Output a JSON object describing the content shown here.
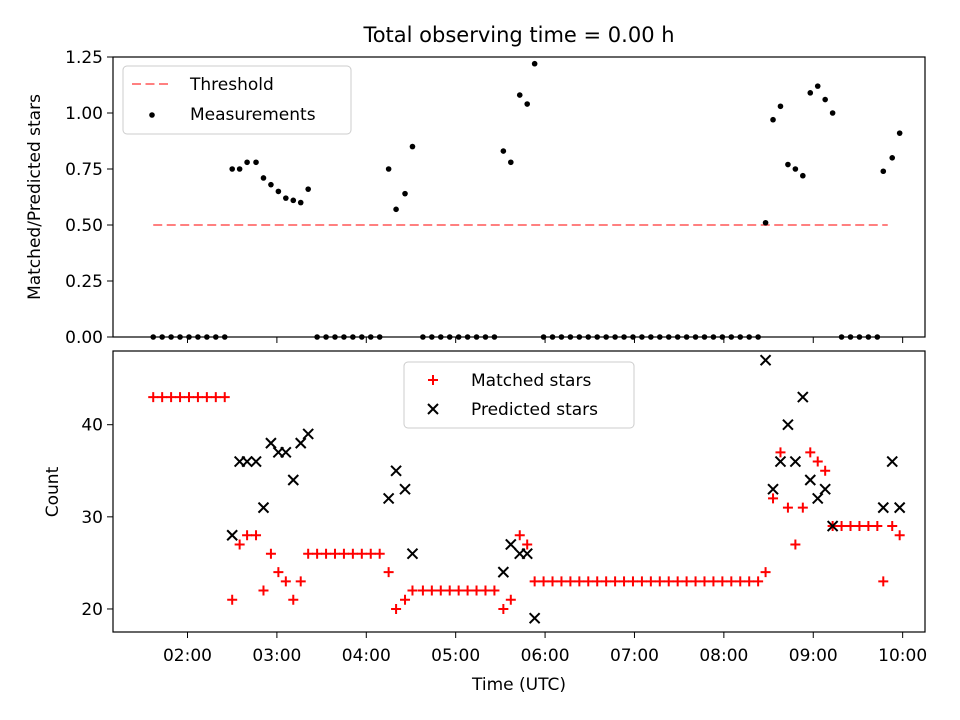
{
  "chart_data": [
    {
      "type": "scatter",
      "title": "Total observing time = 0.00 h",
      "xlabel": "",
      "ylabel": "Matched/Predicted stars",
      "xlim": [
        "01:10",
        "10:15"
      ],
      "ylim": [
        0,
        1.25
      ],
      "yticks": [
        "0.00",
        "0.25",
        "0.50",
        "0.75",
        "1.00",
        "1.25"
      ],
      "xticks_labels_shown": false,
      "legend": {
        "position": "top-left",
        "entries": [
          "Threshold",
          "Measurements"
        ]
      },
      "threshold": {
        "name": "Threshold",
        "value": 0.5,
        "x": [
          "01:37",
          "09:50"
        ],
        "color": "#ff8080",
        "style": "dashed"
      },
      "series": [
        {
          "name": "Measurements",
          "color": "#000000",
          "marker": "dot",
          "points": [
            [
              "01:37",
              0
            ],
            [
              "01:43",
              0
            ],
            [
              "01:49",
              0
            ],
            [
              "01:55",
              0
            ],
            [
              "02:01",
              0
            ],
            [
              "02:07",
              0
            ],
            [
              "02:13",
              0
            ],
            [
              "02:19",
              0
            ],
            [
              "02:25",
              0
            ],
            [
              "02:30",
              0.75
            ],
            [
              "02:35",
              0.75
            ],
            [
              "02:40",
              0.78
            ],
            [
              "02:46",
              0.78
            ],
            [
              "02:51",
              0.71
            ],
            [
              "02:56",
              0.68
            ],
            [
              "03:01",
              0.65
            ],
            [
              "03:06",
              0.62
            ],
            [
              "03:11",
              0.61
            ],
            [
              "03:16",
              0.6
            ],
            [
              "03:21",
              0.66
            ],
            [
              "03:27",
              0
            ],
            [
              "03:33",
              0
            ],
            [
              "03:39",
              0
            ],
            [
              "03:45",
              0
            ],
            [
              "03:51",
              0
            ],
            [
              "03:57",
              0
            ],
            [
              "04:03",
              0
            ],
            [
              "04:09",
              0
            ],
            [
              "04:15",
              0.75
            ],
            [
              "04:20",
              0.57
            ],
            [
              "04:26",
              0.64
            ],
            [
              "04:31",
              0.85
            ],
            [
              "04:38",
              0
            ],
            [
              "04:44",
              0
            ],
            [
              "04:50",
              0
            ],
            [
              "04:56",
              0
            ],
            [
              "05:02",
              0
            ],
            [
              "05:08",
              0
            ],
            [
              "05:14",
              0
            ],
            [
              "05:20",
              0
            ],
            [
              "05:26",
              0
            ],
            [
              "05:32",
              0.83
            ],
            [
              "05:37",
              0.78
            ],
            [
              "05:43",
              1.08
            ],
            [
              "05:48",
              1.04
            ],
            [
              "05:53",
              1.22
            ],
            [
              "05:59",
              0
            ],
            [
              "06:05",
              0
            ],
            [
              "06:11",
              0
            ],
            [
              "06:17",
              0
            ],
            [
              "06:23",
              0
            ],
            [
              "06:29",
              0
            ],
            [
              "06:35",
              0
            ],
            [
              "06:41",
              0
            ],
            [
              "06:47",
              0
            ],
            [
              "06:53",
              0
            ],
            [
              "06:59",
              0
            ],
            [
              "07:05",
              0
            ],
            [
              "07:11",
              0
            ],
            [
              "07:17",
              0
            ],
            [
              "07:23",
              0
            ],
            [
              "07:29",
              0
            ],
            [
              "07:35",
              0
            ],
            [
              "07:41",
              0
            ],
            [
              "07:47",
              0
            ],
            [
              "07:53",
              0
            ],
            [
              "07:59",
              0
            ],
            [
              "08:05",
              0
            ],
            [
              "08:11",
              0
            ],
            [
              "08:17",
              0
            ],
            [
              "08:23",
              0
            ],
            [
              "08:28",
              0.51
            ],
            [
              "08:33",
              0.97
            ],
            [
              "08:38",
              1.03
            ],
            [
              "08:43",
              0.77
            ],
            [
              "08:48",
              0.75
            ],
            [
              "08:53",
              0.72
            ],
            [
              "08:58",
              1.09
            ],
            [
              "09:03",
              1.12
            ],
            [
              "09:08",
              1.06
            ],
            [
              "09:13",
              1.0
            ],
            [
              "09:19",
              0
            ],
            [
              "09:25",
              0
            ],
            [
              "09:31",
              0
            ],
            [
              "09:37",
              0
            ],
            [
              "09:43",
              0
            ],
            [
              "09:47",
              0.74
            ],
            [
              "09:53",
              0.8
            ],
            [
              "09:58",
              0.91
            ]
          ]
        }
      ]
    },
    {
      "type": "scatter",
      "title": "",
      "xlabel": "Time (UTC)",
      "ylabel": "Count",
      "xlim": [
        "01:10",
        "10:15"
      ],
      "ylim": [
        17.5,
        48
      ],
      "xticks": [
        "02:00",
        "03:00",
        "04:00",
        "05:00",
        "06:00",
        "07:00",
        "08:00",
        "09:00",
        "10:00"
      ],
      "yticks": [
        "20",
        "30",
        "40"
      ],
      "legend": {
        "position": "top-center",
        "entries": [
          "Matched stars",
          "Predicted stars"
        ]
      },
      "series": [
        {
          "name": "Matched stars",
          "color": "#ff0000",
          "marker": "plus",
          "points": [
            [
              "01:37",
              43
            ],
            [
              "01:43",
              43
            ],
            [
              "01:49",
              43
            ],
            [
              "01:55",
              43
            ],
            [
              "02:01",
              43
            ],
            [
              "02:07",
              43
            ],
            [
              "02:13",
              43
            ],
            [
              "02:19",
              43
            ],
            [
              "02:25",
              43
            ],
            [
              "02:30",
              21
            ],
            [
              "02:35",
              27
            ],
            [
              "02:40",
              28
            ],
            [
              "02:46",
              28
            ],
            [
              "02:51",
              22
            ],
            [
              "02:56",
              26
            ],
            [
              "03:01",
              24
            ],
            [
              "03:06",
              23
            ],
            [
              "03:11",
              21
            ],
            [
              "03:16",
              23
            ],
            [
              "03:21",
              26
            ],
            [
              "03:27",
              26
            ],
            [
              "03:33",
              26
            ],
            [
              "03:39",
              26
            ],
            [
              "03:45",
              26
            ],
            [
              "03:51",
              26
            ],
            [
              "03:57",
              26
            ],
            [
              "04:03",
              26
            ],
            [
              "04:09",
              26
            ],
            [
              "04:15",
              24
            ],
            [
              "04:20",
              20
            ],
            [
              "04:26",
              21
            ],
            [
              "04:31",
              22
            ],
            [
              "04:38",
              22
            ],
            [
              "04:44",
              22
            ],
            [
              "04:50",
              22
            ],
            [
              "04:56",
              22
            ],
            [
              "05:02",
              22
            ],
            [
              "05:08",
              22
            ],
            [
              "05:14",
              22
            ],
            [
              "05:20",
              22
            ],
            [
              "05:26",
              22
            ],
            [
              "05:32",
              20
            ],
            [
              "05:37",
              21
            ],
            [
              "05:43",
              28
            ],
            [
              "05:48",
              27
            ],
            [
              "05:53",
              23
            ],
            [
              "05:59",
              23
            ],
            [
              "06:05",
              23
            ],
            [
              "06:11",
              23
            ],
            [
              "06:17",
              23
            ],
            [
              "06:23",
              23
            ],
            [
              "06:29",
              23
            ],
            [
              "06:35",
              23
            ],
            [
              "06:41",
              23
            ],
            [
              "06:47",
              23
            ],
            [
              "06:53",
              23
            ],
            [
              "06:59",
              23
            ],
            [
              "07:05",
              23
            ],
            [
              "07:11",
              23
            ],
            [
              "07:17",
              23
            ],
            [
              "07:23",
              23
            ],
            [
              "07:29",
              23
            ],
            [
              "07:35",
              23
            ],
            [
              "07:41",
              23
            ],
            [
              "07:47",
              23
            ],
            [
              "07:53",
              23
            ],
            [
              "07:59",
              23
            ],
            [
              "08:05",
              23
            ],
            [
              "08:11",
              23
            ],
            [
              "08:17",
              23
            ],
            [
              "08:23",
              23
            ],
            [
              "08:28",
              24
            ],
            [
              "08:33",
              32
            ],
            [
              "08:38",
              37
            ],
            [
              "08:43",
              31
            ],
            [
              "08:48",
              27
            ],
            [
              "08:53",
              31
            ],
            [
              "08:58",
              37
            ],
            [
              "09:03",
              36
            ],
            [
              "09:08",
              35
            ],
            [
              "09:13",
              29
            ],
            [
              "09:19",
              29
            ],
            [
              "09:25",
              29
            ],
            [
              "09:31",
              29
            ],
            [
              "09:37",
              29
            ],
            [
              "09:43",
              29
            ],
            [
              "09:47",
              23
            ],
            [
              "09:53",
              29
            ],
            [
              "09:58",
              28
            ]
          ]
        },
        {
          "name": "Predicted stars",
          "color": "#000000",
          "marker": "x",
          "points": [
            [
              "02:30",
              28
            ],
            [
              "02:35",
              36
            ],
            [
              "02:40",
              36
            ],
            [
              "02:46",
              36
            ],
            [
              "02:51",
              31
            ],
            [
              "02:56",
              38
            ],
            [
              "03:01",
              37
            ],
            [
              "03:06",
              37
            ],
            [
              "03:11",
              34
            ],
            [
              "03:16",
              38
            ],
            [
              "03:21",
              39
            ],
            [
              "04:15",
              32
            ],
            [
              "04:20",
              35
            ],
            [
              "04:26",
              33
            ],
            [
              "04:31",
              26
            ],
            [
              "05:32",
              24
            ],
            [
              "05:37",
              27
            ],
            [
              "05:43",
              26
            ],
            [
              "05:48",
              26
            ],
            [
              "05:53",
              19
            ],
            [
              "08:28",
              47
            ],
            [
              "08:33",
              33
            ],
            [
              "08:38",
              36
            ],
            [
              "08:43",
              40
            ],
            [
              "08:48",
              36
            ],
            [
              "08:53",
              43
            ],
            [
              "08:58",
              34
            ],
            [
              "09:03",
              32
            ],
            [
              "09:08",
              33
            ],
            [
              "09:13",
              29
            ],
            [
              "09:47",
              31
            ],
            [
              "09:53",
              36
            ],
            [
              "09:58",
              31
            ]
          ]
        }
      ]
    }
  ]
}
